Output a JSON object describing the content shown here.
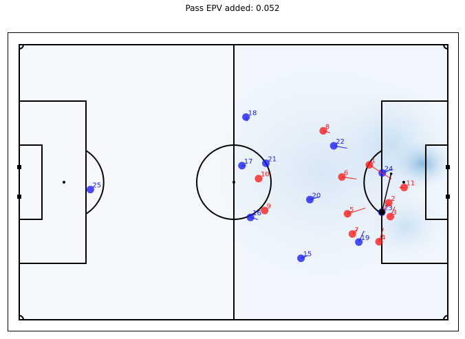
{
  "title": "Pass EPV added: 0.052",
  "colors": {
    "attack": "#ff1a1a",
    "defend": "#1a1aff",
    "line": "#000000",
    "surface": "#f5f9fd",
    "glow": "#6aaede"
  },
  "players": [
    {
      "team": "blue",
      "label": "25",
      "x": -35.5,
      "y": -1.8,
      "vx": 0,
      "vy": 0
    },
    {
      "team": "blue",
      "label": "18",
      "x": 3.0,
      "y": 16.1,
      "vx": 0.3,
      "vy": -1.0
    },
    {
      "team": "blue",
      "label": "17",
      "x": 2.0,
      "y": 4.1,
      "vx": 0.8,
      "vy": 0
    },
    {
      "team": "blue",
      "label": "21",
      "x": 7.9,
      "y": 4.7,
      "vx": 0.7,
      "vy": -0.7
    },
    {
      "team": "blue",
      "label": "22",
      "x": 24.7,
      "y": 9.0,
      "vx": 3.3,
      "vy": -0.6
    },
    {
      "team": "blue",
      "label": "16",
      "x": 4.1,
      "y": -8.7,
      "vx": 1.8,
      "vy": -0.5
    },
    {
      "team": "blue",
      "label": "20",
      "x": 18.8,
      "y": -4.3,
      "vx": 2.4,
      "vy": 0.7
    },
    {
      "team": "blue",
      "label": "15",
      "x": 16.6,
      "y": -18.8,
      "vx": 1.7,
      "vy": 0.7
    },
    {
      "team": "blue",
      "label": "19",
      "x": 30.9,
      "y": -14.8,
      "vx": 1.3,
      "vy": 2.8
    },
    {
      "team": "blue",
      "label": "24",
      "x": 36.7,
      "y": 2.3,
      "vx": 2.6,
      "vy": 0.9
    },
    {
      "team": "blue",
      "label": "23",
      "x": 36.6,
      "y": -7.4,
      "vx": 0.7,
      "vy": 0.3
    },
    {
      "team": "red",
      "label": "8",
      "x": 22.1,
      "y": 12.7,
      "vx": 1.7,
      "vy": -0.5
    },
    {
      "team": "red",
      "label": "1",
      "x": 33.5,
      "y": 4.3,
      "vx": 5.5,
      "vy": -3.5
    },
    {
      "team": "red",
      "label": "6",
      "x": 26.7,
      "y": 1.3,
      "vx": 3.6,
      "vy": -0.5
    },
    {
      "team": "red",
      "label": "10",
      "x": 6.1,
      "y": 0.9,
      "vx": 0,
      "vy": 0
    },
    {
      "team": "red",
      "label": "11",
      "x": 42.1,
      "y": -1.3,
      "vx": -1.2,
      "vy": 0
    },
    {
      "team": "red",
      "label": "9",
      "x": 7.6,
      "y": -7.0,
      "vx": 0,
      "vy": 0
    },
    {
      "team": "red",
      "label": "2",
      "x": 38.3,
      "y": -5.1,
      "vx": -1.3,
      "vy": -1.7
    },
    {
      "team": "red",
      "label": "3",
      "x": 38.7,
      "y": -8.5,
      "vx": 1.1,
      "vy": 2.4
    },
    {
      "team": "red",
      "label": "5",
      "x": 28.1,
      "y": -7.8,
      "vx": 4.4,
      "vy": 1.4
    },
    {
      "team": "red",
      "label": "7",
      "x": 29.3,
      "y": -12.8,
      "vx": 1.3,
      "vy": 1.3
    },
    {
      "team": "red",
      "label": "4",
      "x": 35.9,
      "y": -14.7,
      "vx": 1.1,
      "vy": 3.4
    }
  ],
  "ball": {
    "x": 36.6,
    "y": -7.4
  },
  "pass": {
    "from": [
      36.6,
      -7.4
    ],
    "to": [
      38.9,
      2.1
    ]
  }
}
